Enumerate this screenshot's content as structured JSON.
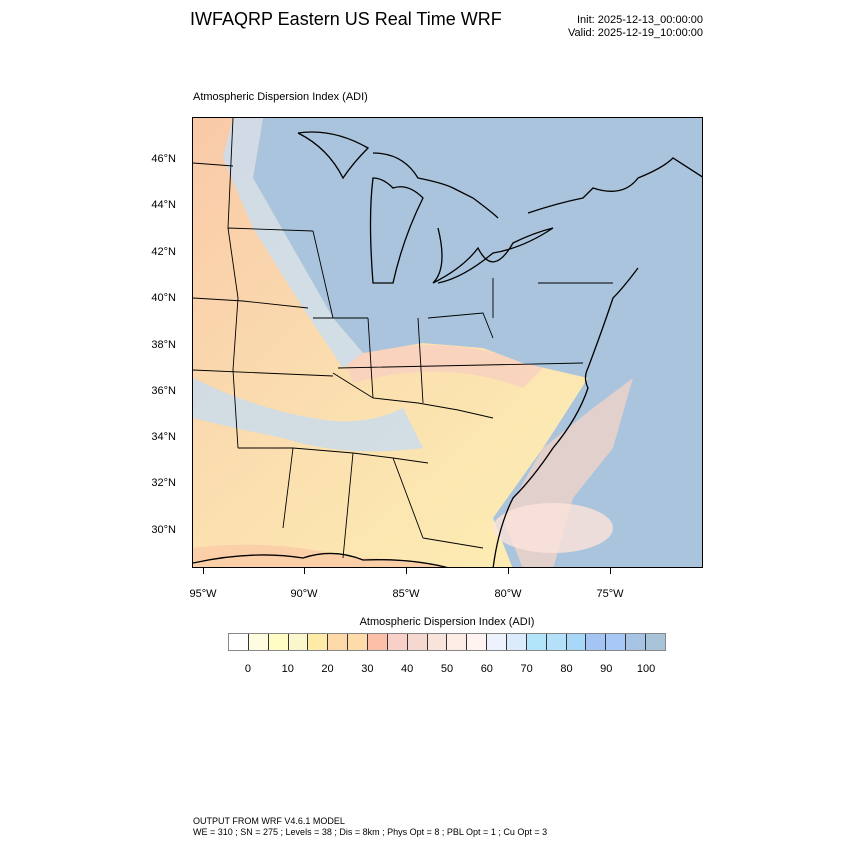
{
  "header": {
    "title": "IWFAQRP Eastern US Real Time WRF",
    "init": "Init: 2025-12-13_00:00:00",
    "valid": "Valid: 2025-12-19_10:00:00"
  },
  "map": {
    "title": "Atmospheric Dispersion Index   (ADI)",
    "lat_labels": [
      "46°N",
      "44°N",
      "42°N",
      "40°N",
      "38°N",
      "36°N",
      "34°N",
      "32°N",
      "30°N"
    ],
    "lon_labels": [
      "95°W",
      "90°W",
      "85°W",
      "80°W",
      "75°W"
    ],
    "colors": {
      "land_low": "#fdf3b4",
      "land_mid": "#f9c9b0",
      "land_high": "#a9c3da",
      "ocean": "#a9c4dc"
    }
  },
  "colorbar": {
    "title": "Atmospheric Dispersion Index  (ADI)",
    "labels": [
      "0",
      "10",
      "20",
      "30",
      "40",
      "50",
      "60",
      "70",
      "80",
      "90",
      "100"
    ],
    "colors": [
      "#ffffff",
      "#fffde0",
      "#fffcc4",
      "#fbf7cc",
      "#feeba8",
      "#fdd9a8",
      "#fddcaa",
      "#fcc0a8",
      "#f7d0c8",
      "#f5d8d0",
      "#f8e4da",
      "#fdebe6",
      "#fff4f2",
      "#eef2fd",
      "#dcebfc",
      "#b2e4fa",
      "#b4e0fa",
      "#a8d8f8",
      "#a4c4f4",
      "#a8c8f8",
      "#a8c4e4",
      "#a8c4d8"
    ]
  },
  "footer": {
    "line1": "OUTPUT FROM WRF V4.6.1 MODEL",
    "line2": "WE = 310 ; SN = 275 ; Levels = 38 ; Dis = 8km ; Phys Opt = 8 ; PBL Opt = 1 ; Cu Opt = 3"
  }
}
